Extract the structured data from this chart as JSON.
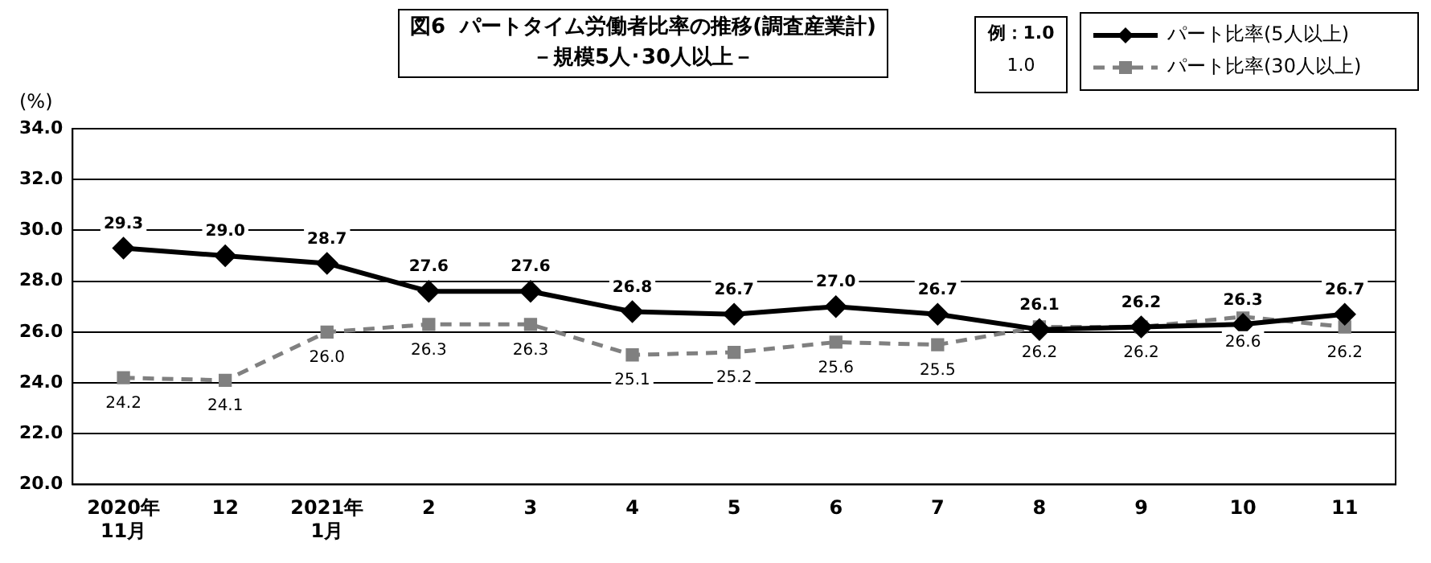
{
  "chart_data": {
    "type": "line",
    "title": "図6  パートタイム労働者比率の推移(調査産業計)",
    "subtitle": "－規模5人･30人以上－",
    "ylabel": "(%)",
    "categories": [
      "2020年\n11月",
      "12",
      "2021年\n1月",
      "2",
      "3",
      "4",
      "5",
      "6",
      "7",
      "8",
      "9",
      "10",
      "11"
    ],
    "series": [
      {
        "name": "パート比率(5人以上)",
        "color": "#000000",
        "marker": "diamond",
        "line_style": "solid",
        "values": [
          29.3,
          29.0,
          28.7,
          27.6,
          27.6,
          26.8,
          26.7,
          27.0,
          26.7,
          26.1,
          26.2,
          26.3,
          26.7
        ],
        "value_labels": [
          "29.3",
          "29.0",
          "28.7",
          "27.6",
          "27.6",
          "26.8",
          "26.7",
          "27.0",
          "26.7",
          "26.1",
          "26.2",
          "26.3",
          "26.7"
        ]
      },
      {
        "name": "パート比率(30人以上)",
        "color": "#808080",
        "marker": "square",
        "line_style": "dashed",
        "values": [
          24.2,
          24.1,
          26.0,
          26.3,
          26.3,
          25.1,
          25.2,
          25.6,
          25.5,
          26.2,
          26.2,
          26.6,
          26.2
        ],
        "value_labels": [
          "24.2",
          "24.1",
          "26.0",
          "26.3",
          "26.3",
          "25.1",
          "25.2",
          "25.6",
          "25.5",
          "26.2",
          "26.2",
          "26.6",
          "26.2"
        ]
      }
    ],
    "ylim": [
      20,
      34
    ],
    "yticks": [
      {
        "value": 20,
        "label": "20.0"
      },
      {
        "value": 22,
        "label": "22.0"
      },
      {
        "value": 24,
        "label": "24.0"
      },
      {
        "value": 26,
        "label": "26.0"
      },
      {
        "value": 28,
        "label": "28.0"
      },
      {
        "value": 30,
        "label": "30.0"
      },
      {
        "value": 32,
        "label": "32.0"
      },
      {
        "value": 34,
        "label": "34.0"
      }
    ],
    "grid": "y",
    "legend": "top right",
    "annotations": [
      "例：1.0",
      "1.0"
    ]
  }
}
